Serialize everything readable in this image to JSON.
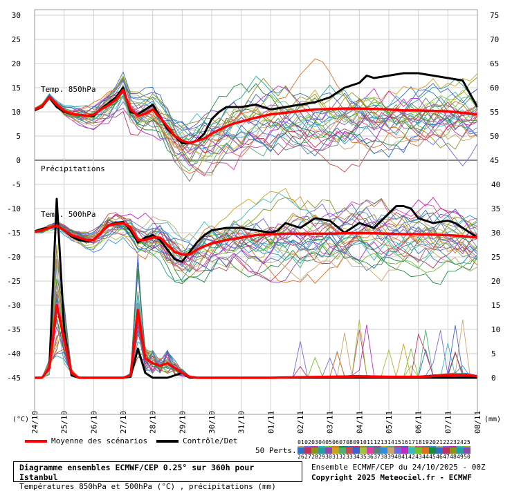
{
  "chart_data": {
    "type": "line",
    "title": "Diagramme ensembles ECMWF/CEP 0.25° sur 360h pour Istanbul",
    "subtitle": "Températures 850hPa et 500hPa (°C) , précipitations (mm)",
    "left_axis_unit": "(°C)",
    "right_axis_unit": "(mm)",
    "left_ticks": [
      30,
      25,
      20,
      15,
      10,
      5,
      0,
      -5,
      -10,
      -15,
      -20,
      -25,
      -30,
      -35,
      -40,
      -45
    ],
    "right_ticks_top": [
      75,
      70,
      65,
      60,
      55,
      50,
      45
    ],
    "right_ticks_bottom": [
      40,
      35,
      30,
      25,
      20,
      15,
      10,
      5,
      0
    ],
    "x_dates": [
      "24/10",
      "25/10",
      "26/10",
      "27/10",
      "28/10",
      "29/10",
      "30/10",
      "31/10",
      "01/11",
      "02/11",
      "03/11",
      "04/11",
      "05/11",
      "06/11",
      "07/11",
      "08/11"
    ],
    "labels": {
      "t850": "Temp. 850hPa",
      "precip": "Précipitations",
      "t500": "Temp. 500hPa"
    },
    "series_850_mean": [
      [
        0,
        10.5
      ],
      [
        0.25,
        11.2
      ],
      [
        0.5,
        13.1
      ],
      [
        0.75,
        11.5
      ],
      [
        1,
        10.2
      ],
      [
        1.25,
        9.6
      ],
      [
        1.5,
        9.4
      ],
      [
        1.75,
        9.2
      ],
      [
        2,
        9.4
      ],
      [
        2.25,
        10.5
      ],
      [
        2.5,
        11.4
      ],
      [
        2.75,
        12.5
      ],
      [
        3,
        14.5
      ],
      [
        3.25,
        10.5
      ],
      [
        3.5,
        9.2
      ],
      [
        3.75,
        9.6
      ],
      [
        4,
        10.5
      ],
      [
        4.25,
        8.8
      ],
      [
        4.5,
        7.0
      ],
      [
        4.75,
        5.0
      ],
      [
        5,
        4.0
      ],
      [
        5.25,
        3.6
      ],
      [
        5.5,
        4.0
      ],
      [
        5.75,
        4.5
      ],
      [
        6,
        5.5
      ],
      [
        6.25,
        6.3
      ],
      [
        6.5,
        7.0
      ],
      [
        6.75,
        7.6
      ],
      [
        7,
        8.0
      ],
      [
        7.5,
        8.8
      ],
      [
        8,
        9.5
      ],
      [
        8.5,
        9.8
      ],
      [
        9,
        10.2
      ],
      [
        9.5,
        10.5
      ],
      [
        10,
        10.6
      ],
      [
        10.5,
        10.7
      ],
      [
        11,
        10.7
      ],
      [
        11.5,
        10.6
      ],
      [
        12,
        10.5
      ],
      [
        12.5,
        10.3
      ],
      [
        13,
        10.3
      ],
      [
        13.5,
        10.2
      ],
      [
        14,
        10.1
      ],
      [
        14.5,
        9.8
      ],
      [
        15,
        9.5
      ]
    ],
    "series_850_control": [
      [
        0,
        10.3
      ],
      [
        0.25,
        11.0
      ],
      [
        0.5,
        13.0
      ],
      [
        0.75,
        11.0
      ],
      [
        1,
        10.0
      ],
      [
        1.25,
        9.6
      ],
      [
        1.5,
        9.4
      ],
      [
        1.75,
        9.2
      ],
      [
        2,
        9.2
      ],
      [
        2.25,
        10.6
      ],
      [
        2.5,
        11.8
      ],
      [
        2.75,
        13.0
      ],
      [
        3,
        15.0
      ],
      [
        3.25,
        10.0
      ],
      [
        3.5,
        9.5
      ],
      [
        3.75,
        10.5
      ],
      [
        4,
        11.5
      ],
      [
        4.25,
        9.0
      ],
      [
        4.5,
        6.5
      ],
      [
        4.75,
        5.0
      ],
      [
        5,
        3.5
      ],
      [
        5.25,
        3.5
      ],
      [
        5.5,
        4.0
      ],
      [
        5.75,
        5.5
      ],
      [
        6,
        8.5
      ],
      [
        6.25,
        10.0
      ],
      [
        6.5,
        11.0
      ],
      [
        7,
        11.0
      ],
      [
        7.5,
        11.5
      ],
      [
        8,
        10.5
      ],
      [
        8.5,
        11.0
      ],
      [
        9,
        11.5
      ],
      [
        9.5,
        12.0
      ],
      [
        10,
        13.0
      ],
      [
        10.5,
        15.0
      ],
      [
        11,
        16.0
      ],
      [
        11.25,
        17.5
      ],
      [
        11.5,
        17.0
      ],
      [
        12,
        17.5
      ],
      [
        12.5,
        18.0
      ],
      [
        13,
        18.0
      ],
      [
        13.5,
        17.5
      ],
      [
        14,
        17.0
      ],
      [
        14.5,
        16.5
      ],
      [
        15,
        11.0
      ]
    ],
    "series_500_mean": [
      [
        0,
        -14.8
      ],
      [
        0.25,
        -14.5
      ],
      [
        0.5,
        -14.0
      ],
      [
        0.75,
        -13.5
      ],
      [
        1,
        -14.5
      ],
      [
        1.25,
        -15.5
      ],
      [
        1.5,
        -16.0
      ],
      [
        1.75,
        -16.5
      ],
      [
        2,
        -16.5
      ],
      [
        2.25,
        -15.0
      ],
      [
        2.5,
        -13.5
      ],
      [
        2.75,
        -13.2
      ],
      [
        3,
        -13.0
      ],
      [
        3.25,
        -14.0
      ],
      [
        3.5,
        -16.5
      ],
      [
        3.75,
        -16.5
      ],
      [
        4,
        -16.0
      ],
      [
        4.25,
        -16.0
      ],
      [
        4.5,
        -17.5
      ],
      [
        4.75,
        -19.0
      ],
      [
        5,
        -19.5
      ],
      [
        5.25,
        -19.5
      ],
      [
        5.5,
        -18.5
      ],
      [
        5.75,
        -17.8
      ],
      [
        6,
        -17.2
      ],
      [
        6.5,
        -16.5
      ],
      [
        7,
        -16.0
      ],
      [
        7.5,
        -15.5
      ],
      [
        8,
        -15.3
      ],
      [
        8.5,
        -15.2
      ],
      [
        9,
        -15.2
      ],
      [
        9.5,
        -15.2
      ],
      [
        10,
        -15.2
      ],
      [
        10.5,
        -15.1
      ],
      [
        11,
        -15.1
      ],
      [
        11.5,
        -15.1
      ],
      [
        12,
        -15.2
      ],
      [
        12.5,
        -15.3
      ],
      [
        13,
        -15.3
      ],
      [
        13.5,
        -15.4
      ],
      [
        14,
        -15.5
      ],
      [
        14.5,
        -15.7
      ],
      [
        15,
        -16.0
      ]
    ],
    "series_500_control": [
      [
        0,
        -14.7
      ],
      [
        0.25,
        -14.2
      ],
      [
        0.5,
        -14.0
      ],
      [
        0.75,
        -13.5
      ],
      [
        1,
        -14.5
      ],
      [
        1.25,
        -15.8
      ],
      [
        1.5,
        -16.5
      ],
      [
        1.75,
        -16.8
      ],
      [
        2,
        -16.5
      ],
      [
        2.25,
        -15.0
      ],
      [
        2.5,
        -13.5
      ],
      [
        2.75,
        -13.0
      ],
      [
        3,
        -12.8
      ],
      [
        3.25,
        -14.5
      ],
      [
        3.5,
        -17.0
      ],
      [
        3.75,
        -16.0
      ],
      [
        4,
        -15.5
      ],
      [
        4.25,
        -16.5
      ],
      [
        4.5,
        -18.5
      ],
      [
        4.75,
        -20.5
      ],
      [
        5,
        -21.0
      ],
      [
        5.25,
        -19.0
      ],
      [
        5.5,
        -17.0
      ],
      [
        5.75,
        -15.5
      ],
      [
        6,
        -14.5
      ],
      [
        6.5,
        -14.0
      ],
      [
        7,
        -14.0
      ],
      [
        7.5,
        -14.5
      ],
      [
        8,
        -15.0
      ],
      [
        8.25,
        -14.5
      ],
      [
        8.5,
        -13.0
      ],
      [
        9,
        -14.0
      ],
      [
        9.25,
        -13.0
      ],
      [
        9.5,
        -12.0
      ],
      [
        10,
        -12.5
      ],
      [
        10.5,
        -15.0
      ],
      [
        11,
        -13.0
      ],
      [
        11.5,
        -14.0
      ],
      [
        12,
        -11.0
      ],
      [
        12.25,
        -9.5
      ],
      [
        12.5,
        -9.5
      ],
      [
        12.75,
        -10.0
      ],
      [
        13,
        -12.0
      ],
      [
        13.5,
        -13.0
      ],
      [
        14,
        -12.5
      ],
      [
        14.25,
        -13.0
      ],
      [
        14.5,
        -14.0
      ],
      [
        15,
        -16.0
      ]
    ],
    "series_precip_mean": [
      [
        0,
        0
      ],
      [
        0.25,
        0
      ],
      [
        0.5,
        2
      ],
      [
        0.75,
        15
      ],
      [
        1,
        8
      ],
      [
        1.25,
        1
      ],
      [
        1.5,
        0
      ],
      [
        1.75,
        0
      ],
      [
        2,
        0
      ],
      [
        2.25,
        0
      ],
      [
        2.5,
        0
      ],
      [
        2.75,
        0
      ],
      [
        3,
        0
      ],
      [
        3.25,
        0.5
      ],
      [
        3.5,
        14
      ],
      [
        3.75,
        4
      ],
      [
        4,
        3
      ],
      [
        4.25,
        2.5
      ],
      [
        4.5,
        3
      ],
      [
        4.75,
        2
      ],
      [
        5,
        1
      ],
      [
        5.25,
        0.2
      ],
      [
        5.5,
        0
      ],
      [
        6,
        0
      ],
      [
        7,
        0
      ],
      [
        8,
        0
      ],
      [
        9,
        0.1
      ],
      [
        10,
        0.2
      ],
      [
        11,
        0.3
      ],
      [
        12,
        0.2
      ],
      [
        13,
        0.2
      ],
      [
        14,
        0.5
      ],
      [
        14.5,
        0.6
      ],
      [
        15,
        0.3
      ]
    ],
    "series_precip_control": [
      [
        0,
        0
      ],
      [
        0.25,
        0
      ],
      [
        0.5,
        2
      ],
      [
        0.75,
        37
      ],
      [
        1,
        10
      ],
      [
        1.25,
        0.5
      ],
      [
        1.5,
        0
      ],
      [
        2,
        0
      ],
      [
        3,
        0
      ],
      [
        3.25,
        0.2
      ],
      [
        3.5,
        6
      ],
      [
        3.75,
        1
      ],
      [
        4,
        0
      ],
      [
        4.25,
        0
      ],
      [
        4.5,
        0
      ],
      [
        4.75,
        0.5
      ],
      [
        5,
        1
      ],
      [
        5.25,
        0
      ],
      [
        6,
        0
      ],
      [
        9,
        0
      ],
      [
        10,
        0
      ],
      [
        11,
        0
      ],
      [
        12,
        0
      ],
      [
        13,
        0
      ],
      [
        14,
        0
      ],
      [
        15,
        0
      ]
    ],
    "series_colors": [
      "#c9a36b",
      "#6c6ce0",
      "#c02cc0",
      "#3db8b8",
      "#70c030",
      "#e07020",
      "#1a8a3a",
      "#3070c0",
      "#c03060",
      "#909020",
      "#20a0a0",
      "#8a4ab0",
      "#d0a020",
      "#50b070",
      "#c05050",
      "#4060d0",
      "#a0c040",
      "#e040a0",
      "#608080",
      "#3090e0"
    ],
    "legend": {
      "mean": "Moyenne des scénarios",
      "control": "Contrôle/Det",
      "perts": "50 Perts.",
      "mean_color": "#ff0000",
      "control_color": "#000000"
    },
    "perts_numbers_top": [
      "01",
      "02",
      "03",
      "04",
      "05",
      "06",
      "07",
      "08",
      "09",
      "10",
      "11",
      "12",
      "13",
      "14",
      "15",
      "16",
      "17",
      "18",
      "19",
      "20",
      "21",
      "22",
      "23",
      "24",
      "25"
    ],
    "perts_numbers_bottom": [
      "26",
      "27",
      "28",
      "29",
      "30",
      "31",
      "32",
      "33",
      "34",
      "35",
      "36",
      "37",
      "38",
      "39",
      "40",
      "41",
      "42",
      "43",
      "44",
      "45",
      "46",
      "47",
      "48",
      "49",
      "50"
    ],
    "caption_right_1": "Ensemble ECMWF/CEP du 24/10/2025 - 00Z",
    "caption_right_2": "Copyright 2025 Meteociel.fr - ECMWF"
  }
}
